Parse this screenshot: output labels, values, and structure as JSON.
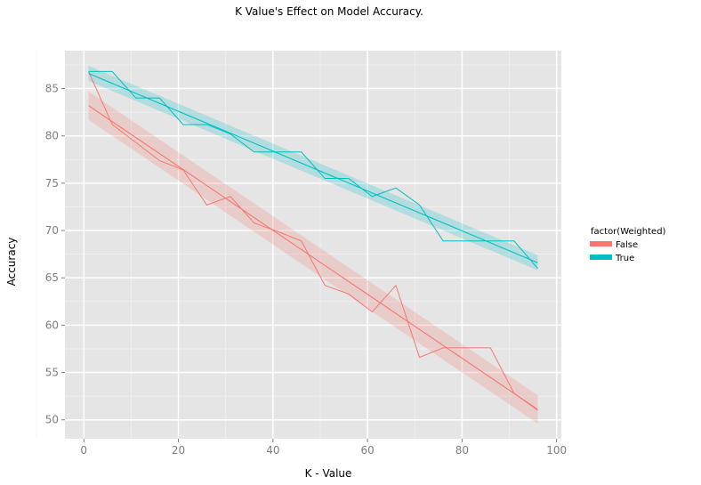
{
  "chart_data": {
    "type": "line",
    "title": "K Value's Effect on Model Accuracy.",
    "xlabel": "K - Value",
    "ylabel": "Accuracy",
    "xlim": [
      -4,
      101
    ],
    "ylim": [
      48,
      89
    ],
    "x_ticks": [
      0,
      20,
      40,
      60,
      80,
      100
    ],
    "y_ticks": [
      50,
      55,
      60,
      65,
      70,
      75,
      80,
      85
    ],
    "x_tick_labels": [
      "0",
      "20",
      "40",
      "60",
      "80",
      "100"
    ],
    "y_tick_labels": [
      "50",
      "55",
      "60",
      "65",
      "70",
      "75",
      "80",
      "85"
    ],
    "grid": true,
    "legend": {
      "title": "factor(Weighted)",
      "position": "right",
      "entries": [
        "False",
        "True"
      ]
    },
    "series": [
      {
        "name": "False",
        "color": "#F8766D",
        "x": [
          1,
          6,
          11,
          16,
          21,
          26,
          31,
          36,
          41,
          46,
          51,
          56,
          61,
          66,
          71,
          76,
          81,
          86,
          91,
          96
        ],
        "y": [
          86.8,
          81.2,
          79.3,
          77.4,
          76.4,
          72.7,
          73.6,
          70.8,
          69.9,
          68.9,
          64.2,
          63.3,
          61.4,
          64.2,
          56.6,
          57.6,
          57.6,
          57.6,
          52.8,
          51.0
        ],
        "fit": {
          "start": [
            1,
            83.2
          ],
          "end": [
            96,
            51.1
          ],
          "band": 1.5
        }
      },
      {
        "name": "True",
        "color": "#00BFC4",
        "x": [
          1,
          6,
          11,
          16,
          21,
          26,
          31,
          36,
          41,
          46,
          51,
          56,
          61,
          66,
          71,
          76,
          81,
          86,
          91,
          96
        ],
        "y": [
          86.8,
          86.8,
          84.0,
          84.0,
          81.2,
          81.2,
          80.2,
          78.3,
          78.3,
          78.3,
          75.5,
          75.5,
          73.6,
          74.5,
          72.7,
          68.9,
          68.9,
          68.9,
          68.9,
          66.0
        ],
        "fit": {
          "start": [
            1,
            86.6
          ],
          "end": [
            96,
            66.6
          ],
          "band": 0.8
        }
      }
    ]
  }
}
